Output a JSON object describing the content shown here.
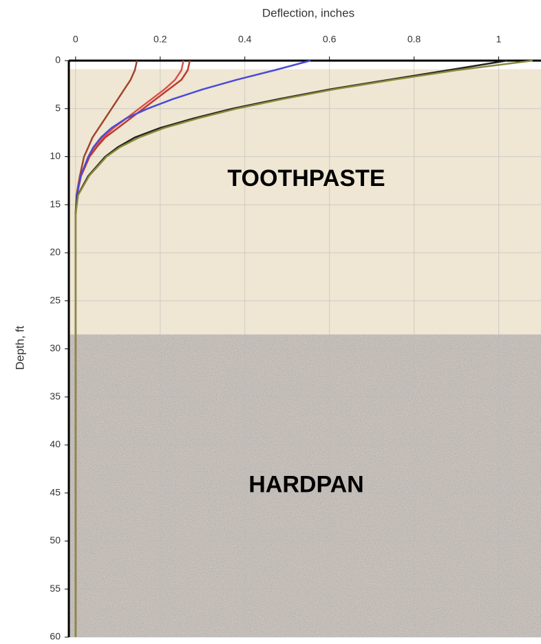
{
  "chart_data": {
    "type": "line",
    "orientation": "depth-down",
    "x_label": "Deflection, inches",
    "y_label": "Depth, ft",
    "xlim": [
      -0.016,
      1.1
    ],
    "xticks": [
      0,
      0.2,
      0.4,
      0.6,
      0.8,
      1
    ],
    "ylim": [
      0,
      60
    ],
    "yticks": [
      0,
      5,
      10,
      15,
      20,
      25,
      30,
      35,
      40,
      45,
      50,
      55,
      60
    ],
    "grid": true,
    "layers": [
      {
        "label": "TOOTHPASTE",
        "top": 0.9,
        "bottom": 28.5,
        "color": "#efe6d3"
      },
      {
        "label": "HARDPAN",
        "top": 28.5,
        "bottom": 60,
        "color": "#c9c2bd"
      }
    ],
    "depths": [
      0,
      1,
      2,
      3,
      4,
      5,
      6,
      7,
      8,
      9,
      10,
      12,
      14,
      16,
      20,
      25,
      30,
      40,
      50,
      60
    ],
    "series": [
      {
        "color": "#a0442c",
        "values": [
          0.145,
          0.14,
          0.13,
          0.115,
          0.1,
          0.085,
          0.07,
          0.055,
          0.04,
          0.03,
          0.02,
          0.01,
          0.002,
          0,
          0,
          0,
          0,
          0,
          0,
          0
        ]
      },
      {
        "color": "#d9534f",
        "values": [
          0.255,
          0.25,
          0.235,
          0.21,
          0.18,
          0.15,
          0.12,
          0.09,
          0.065,
          0.045,
          0.03,
          0.012,
          0.003,
          0,
          0,
          0,
          0,
          0,
          0,
          0
        ]
      },
      {
        "color": "#c0392b",
        "values": [
          0.27,
          0.265,
          0.25,
          0.22,
          0.19,
          0.16,
          0.13,
          0.1,
          0.07,
          0.05,
          0.033,
          0.013,
          0.003,
          0,
          0,
          0,
          0,
          0,
          0,
          0
        ]
      },
      {
        "color": "#4a4ad8",
        "values": [
          0.555,
          0.47,
          0.38,
          0.3,
          0.23,
          0.17,
          0.12,
          0.085,
          0.06,
          0.042,
          0.03,
          0.012,
          0.003,
          0,
          0,
          0,
          0,
          0,
          0,
          0
        ]
      },
      {
        "color": "#222222",
        "values": [
          1.02,
          0.88,
          0.74,
          0.6,
          0.48,
          0.37,
          0.28,
          0.2,
          0.14,
          0.1,
          0.07,
          0.03,
          0.005,
          0,
          0,
          0,
          0,
          0,
          0,
          0
        ]
      },
      {
        "color": "#8a8a3a",
        "values": [
          1.08,
          0.9,
          0.75,
          0.61,
          0.49,
          0.38,
          0.29,
          0.21,
          0.15,
          0.105,
          0.073,
          0.032,
          0.006,
          0,
          0,
          0,
          0,
          0,
          0,
          0
        ]
      }
    ]
  }
}
